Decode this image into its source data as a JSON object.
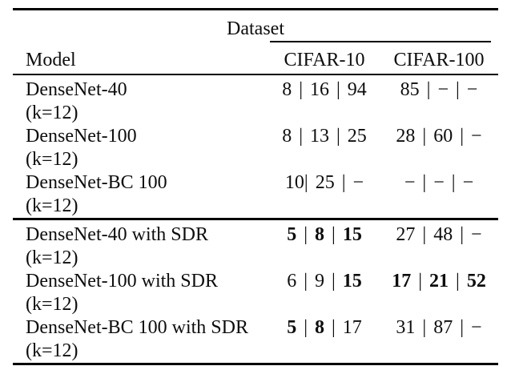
{
  "colors": {
    "text": "#0d0d0d",
    "rule": "#000000",
    "background": "#ffffff"
  },
  "table": {
    "header": {
      "dataset_label": "Dataset",
      "model_label": "Model",
      "col1_label": "CIFAR-10",
      "col2_label": "CIFAR-100"
    },
    "groups": [
      {
        "rows": [
          {
            "model": "DenseNet-40",
            "sub": "(k=12)",
            "cifar10": [
              {
                "t": "8 | 16 | 94",
                "b": false
              }
            ],
            "cifar100": [
              {
                "t": "85 | − | −",
                "b": false
              }
            ]
          },
          {
            "model": "DenseNet-100",
            "sub": "(k=12)",
            "cifar10": [
              {
                "t": "8 | 13 | 25",
                "b": false
              }
            ],
            "cifar100": [
              {
                "t": "28 | 60 | −",
                "b": false
              }
            ]
          },
          {
            "model": "DenseNet-BC 100",
            "sub": "(k=12)",
            "cifar10": [
              {
                "t": "10| 25 | −",
                "b": false
              }
            ],
            "cifar100": [
              {
                "t": "− | − | −",
                "b": false
              }
            ]
          }
        ]
      },
      {
        "rows": [
          {
            "model": "DenseNet-40 with SDR",
            "sub": "(k=12)",
            "cifar10": [
              {
                "t": "5",
                "b": true
              },
              {
                "t": " | ",
                "b": false
              },
              {
                "t": "8",
                "b": true
              },
              {
                "t": " | ",
                "b": false
              },
              {
                "t": "15",
                "b": true
              }
            ],
            "cifar100": [
              {
                "t": "27 | 48 | −",
                "b": false
              }
            ]
          },
          {
            "model": "DenseNet-100 with SDR",
            "sub": "(k=12)",
            "cifar10": [
              {
                "t": "6 | 9 | ",
                "b": false
              },
              {
                "t": "15",
                "b": true
              }
            ],
            "cifar100": [
              {
                "t": "17",
                "b": true
              },
              {
                "t": " | ",
                "b": false
              },
              {
                "t": "21",
                "b": true
              },
              {
                "t": " | ",
                "b": false
              },
              {
                "t": "52",
                "b": true
              }
            ]
          },
          {
            "model": "DenseNet-BC 100 with SDR",
            "sub": "(k=12)",
            "cifar10": [
              {
                "t": "5",
                "b": true
              },
              {
                "t": " | ",
                "b": false
              },
              {
                "t": "8",
                "b": true
              },
              {
                "t": " | 17",
                "b": false
              }
            ],
            "cifar100": [
              {
                "t": "31 | 87 | −",
                "b": false
              }
            ]
          }
        ]
      }
    ]
  }
}
